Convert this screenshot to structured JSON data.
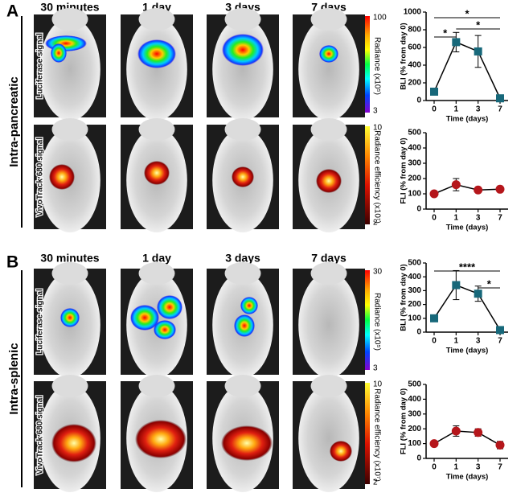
{
  "panels": [
    {
      "letter": "A",
      "group": "Intra-pancreatic",
      "columns": [
        "30 minutes",
        "1 day",
        "3 days",
        "7 days"
      ],
      "rows": [
        "Luciferase signal",
        "VivoTrack 680 signal"
      ],
      "scales": [
        {
          "max": "100",
          "min": "3",
          "label": "Radiance (x10⁵)"
        },
        {
          "max": "10",
          "min": "2",
          "label": "Radiance efficiency (x10⁷)"
        }
      ]
    },
    {
      "letter": "B",
      "group": "Intra-splenic",
      "columns": [
        "30 minutes",
        "1 day",
        "3 days",
        "7 days"
      ],
      "rows": [
        "Luciferase signal",
        "VivoTrack 680 signal"
      ],
      "scales": [
        {
          "max": "30",
          "min": "3",
          "label": "Radiance (x10⁵)"
        },
        {
          "max": "10",
          "min": "2",
          "label": "Radiance efficiency (x10⁷)"
        }
      ]
    }
  ],
  "chart_data": [
    {
      "type": "line",
      "y_label": "BLI (% from day 0)",
      "x_label": "Time (days)",
      "categories": [
        "0",
        "1",
        "3",
        "7"
      ],
      "ylim": [
        0,
        1000
      ],
      "yticks": [
        0,
        200,
        400,
        600,
        800,
        1000
      ],
      "series": [
        {
          "color": "#17687a",
          "marker": "square",
          "values": [
            100,
            660,
            555,
            25
          ],
          "errors": [
            0,
            110,
            180,
            0
          ]
        }
      ],
      "annotations": [
        "*",
        "*",
        "*"
      ]
    },
    {
      "type": "line",
      "y_label": "FLI (% from day 0)",
      "x_label": "Time (days)",
      "categories": [
        "0",
        "1",
        "3",
        "7"
      ],
      "ylim": [
        0,
        500
      ],
      "yticks": [
        0,
        100,
        200,
        300,
        400,
        500
      ],
      "series": [
        {
          "color": "#b5161b",
          "marker": "circle",
          "values": [
            100,
            160,
            125,
            130
          ],
          "errors": [
            0,
            40,
            10,
            10
          ]
        }
      ],
      "annotations": []
    },
    {
      "type": "line",
      "y_label": "BLI (% from day 0)",
      "x_label": "Time (days)",
      "categories": [
        "0",
        "1",
        "3",
        "7"
      ],
      "ylim": [
        0,
        500
      ],
      "yticks": [
        0,
        100,
        200,
        300,
        400,
        500
      ],
      "series": [
        {
          "color": "#17687a",
          "marker": "square",
          "values": [
            100,
            340,
            278,
            15
          ],
          "errors": [
            0,
            105,
            55,
            10
          ]
        }
      ],
      "annotations": [
        "****",
        "*"
      ]
    },
    {
      "type": "line",
      "y_label": "FLI (% from day 0)",
      "x_label": "Time (days)",
      "categories": [
        "0",
        "1",
        "3",
        "7"
      ],
      "ylim": [
        0,
        500
      ],
      "yticks": [
        0,
        100,
        200,
        300,
        400,
        500
      ],
      "series": [
        {
          "color": "#b5161b",
          "marker": "circle",
          "values": [
            100,
            185,
            175,
            90
          ],
          "errors": [
            0,
            35,
            25,
            25
          ]
        }
      ],
      "annotations": []
    }
  ]
}
